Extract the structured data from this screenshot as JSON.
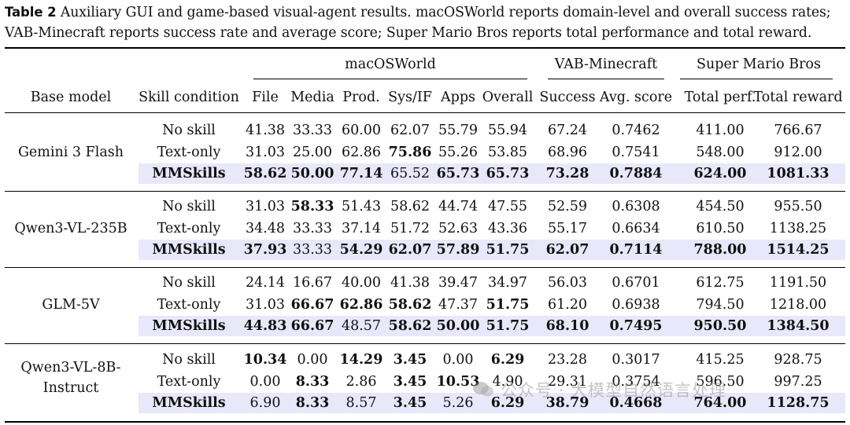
{
  "caption": {
    "label": "Table 2",
    "text": " Auxiliary GUI and game-based visual-agent results. macOSWorld reports domain-level and overall success rates; VAB-Minecraft reports success rate and average score; Super Mario Bros reports total performance and total reward."
  },
  "table": {
    "group_headers": [
      "macOSWorld",
      "VAB-Minecraft",
      "Super Mario Bros"
    ],
    "columns": [
      "Base model",
      "Skill condition",
      "File",
      "Media",
      "Prod.",
      "Sys/IF",
      "Apps",
      "Overall",
      "Success",
      "Avg. score",
      "Total perf.",
      "Total reward"
    ],
    "groups": [
      {
        "model": "Gemini 3 Flash",
        "rows": [
          {
            "cond": "No skill",
            "values": [
              "41.38",
              "33.33",
              "60.00",
              "62.07",
              "55.79",
              "55.94",
              "67.24",
              "0.7462",
              "411.00",
              "766.67"
            ],
            "bold": []
          },
          {
            "cond": "Text-only",
            "values": [
              "31.03",
              "25.00",
              "62.86",
              "75.86",
              "55.26",
              "53.85",
              "68.96",
              "0.7541",
              "548.00",
              "912.00"
            ],
            "bold": [
              3
            ]
          },
          {
            "cond": "MMSkills",
            "values": [
              "58.62",
              "50.00",
              "77.14",
              "65.52",
              "65.73",
              "65.73",
              "73.28",
              "0.7884",
              "624.00",
              "1081.33"
            ],
            "bold": [
              0,
              1,
              2,
              4,
              5,
              6,
              7,
              8,
              9
            ]
          }
        ]
      },
      {
        "model": "Qwen3-VL-235B",
        "rows": [
          {
            "cond": "No skill",
            "values": [
              "31.03",
              "58.33",
              "51.43",
              "58.62",
              "44.74",
              "47.55",
              "52.59",
              "0.6308",
              "454.50",
              "955.50"
            ],
            "bold": [
              1
            ]
          },
          {
            "cond": "Text-only",
            "values": [
              "34.48",
              "33.33",
              "37.14",
              "51.72",
              "52.63",
              "43.36",
              "55.17",
              "0.6634",
              "610.50",
              "1138.25"
            ],
            "bold": []
          },
          {
            "cond": "MMSkills",
            "values": [
              "37.93",
              "33.33",
              "54.29",
              "62.07",
              "57.89",
              "51.75",
              "62.07",
              "0.7114",
              "788.00",
              "1514.25"
            ],
            "bold": [
              0,
              2,
              3,
              4,
              5,
              6,
              7,
              8,
              9
            ]
          }
        ]
      },
      {
        "model": "GLM-5V",
        "rows": [
          {
            "cond": "No skill",
            "values": [
              "24.14",
              "16.67",
              "40.00",
              "41.38",
              "39.47",
              "34.97",
              "56.03",
              "0.6701",
              "612.75",
              "1191.50"
            ],
            "bold": []
          },
          {
            "cond": "Text-only",
            "values": [
              "31.03",
              "66.67",
              "62.86",
              "58.62",
              "47.37",
              "51.75",
              "61.20",
              "0.6938",
              "794.50",
              "1218.00"
            ],
            "bold": [
              1,
              2,
              3,
              5
            ]
          },
          {
            "cond": "MMSkills",
            "values": [
              "44.83",
              "66.67",
              "48.57",
              "58.62",
              "50.00",
              "51.75",
              "68.10",
              "0.7495",
              "950.50",
              "1384.50"
            ],
            "bold": [
              0,
              1,
              3,
              4,
              5,
              6,
              7,
              8,
              9
            ]
          }
        ]
      },
      {
        "model": "Qwen3-VL-8B-Instruct",
        "model_lines": [
          "Qwen3-VL-8B-",
          "Instruct"
        ],
        "rows": [
          {
            "cond": "No skill",
            "values": [
              "10.34",
              "0.00",
              "14.29",
              "3.45",
              "0.00",
              "6.29",
              "23.28",
              "0.3017",
              "415.25",
              "928.75"
            ],
            "bold": [
              0,
              2,
              3,
              5
            ]
          },
          {
            "cond": "Text-only",
            "values": [
              "0.00",
              "8.33",
              "2.86",
              "3.45",
              "10.53",
              "4.90",
              "29.31",
              "0.3754",
              "596.50",
              "997.25"
            ],
            "bold": [
              1,
              3,
              4
            ]
          },
          {
            "cond": "MMSkills",
            "values": [
              "6.90",
              "8.33",
              "8.57",
              "3.45",
              "5.26",
              "6.29",
              "38.79",
              "0.4668",
              "764.00",
              "1128.75"
            ],
            "bold": [
              1,
              3,
              5,
              6,
              7,
              8,
              9
            ]
          }
        ]
      }
    ]
  },
  "watermark": {
    "icon": "wechat-icon",
    "text": "公众号 · 大模型自然语言处理"
  },
  "colors": {
    "highlight_row": "#e9e8fa",
    "rule": "#000000"
  }
}
